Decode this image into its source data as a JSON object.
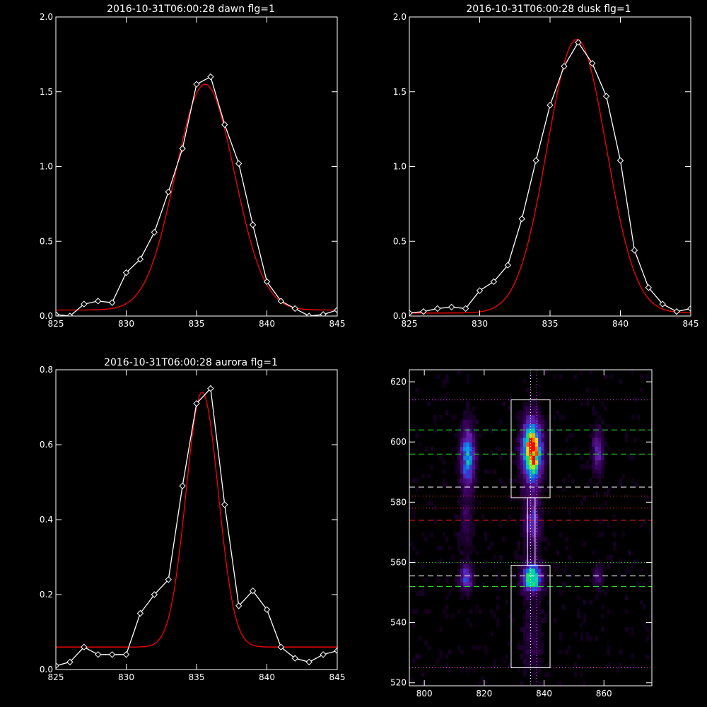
{
  "chart_data": [
    {
      "type": "line",
      "title": "2016-10-31T06:00:28 dawn flg=1",
      "xlim": [
        825,
        845
      ],
      "ylim": [
        0,
        2.0
      ],
      "xticks": [
        825,
        830,
        835,
        840,
        845
      ],
      "yticks": [
        0.0,
        0.5,
        1.0,
        1.5,
        2.0
      ],
      "ytick_labels": [
        "0.0",
        "0.5",
        "1.0",
        "1.5",
        "2.0"
      ],
      "series": [
        {
          "kind": "observed",
          "color": "#ffffff",
          "marker": "diamond",
          "x": [
            825,
            826,
            827,
            828,
            829,
            830,
            831,
            832,
            833,
            834,
            835,
            836,
            837,
            838,
            839,
            840,
            841,
            842,
            843,
            844,
            845
          ],
          "y": [
            0.01,
            0.0,
            0.08,
            0.1,
            0.09,
            0.29,
            0.38,
            0.56,
            0.83,
            1.12,
            1.55,
            1.6,
            1.28,
            1.02,
            0.61,
            0.23,
            0.1,
            0.05,
            0.0,
            0.01,
            0.04
          ]
        },
        {
          "kind": "fit",
          "color": "#ff0000",
          "gauss": {
            "amp": 1.51,
            "center": 835.6,
            "sigma": 2.1,
            "base": 0.04
          }
        }
      ]
    },
    {
      "type": "line",
      "title": "2016-10-31T06:00:28 dusk flg=1",
      "xlim": [
        825,
        845
      ],
      "ylim": [
        0,
        2.0
      ],
      "xticks": [
        825,
        830,
        835,
        840,
        845
      ],
      "yticks": [
        0.0,
        0.5,
        1.0,
        1.5,
        2.0
      ],
      "ytick_labels": [
        "0.0",
        "0.5",
        "1.0",
        "1.5",
        "2.0"
      ],
      "series": [
        {
          "kind": "observed",
          "color": "#ffffff",
          "marker": "diamond",
          "x": [
            825,
            826,
            827,
            828,
            829,
            830,
            831,
            832,
            833,
            834,
            835,
            836,
            837,
            838,
            839,
            840,
            841,
            842,
            843,
            844,
            845
          ],
          "y": [
            0.02,
            0.03,
            0.05,
            0.06,
            0.05,
            0.17,
            0.23,
            0.34,
            0.65,
            1.04,
            1.41,
            1.67,
            1.83,
            1.69,
            1.47,
            1.04,
            0.44,
            0.19,
            0.08,
            0.03,
            0.05
          ]
        },
        {
          "kind": "fit",
          "color": "#ff0000",
          "gauss": {
            "amp": 1.83,
            "center": 836.9,
            "sigma": 2.1,
            "base": 0.02
          }
        }
      ]
    },
    {
      "type": "line",
      "title": "2016-10-31T06:00:28 aurora flg=1",
      "xlim": [
        825,
        845
      ],
      "ylim": [
        0,
        0.8
      ],
      "xticks": [
        825,
        830,
        835,
        840,
        845
      ],
      "yticks": [
        0.0,
        0.2,
        0.4,
        0.6,
        0.8
      ],
      "ytick_labels": [
        "0.0",
        "0.2",
        "0.4",
        "0.6",
        "0.8"
      ],
      "series": [
        {
          "kind": "observed",
          "color": "#ffffff",
          "marker": "diamond",
          "x": [
            825,
            826,
            827,
            828,
            829,
            830,
            831,
            832,
            833,
            834,
            835,
            836,
            837,
            838,
            839,
            840,
            841,
            842,
            843,
            844,
            845
          ],
          "y": [
            0.01,
            0.02,
            0.06,
            0.04,
            0.04,
            0.04,
            0.15,
            0.2,
            0.24,
            0.49,
            0.71,
            0.75,
            0.44,
            0.17,
            0.21,
            0.16,
            0.06,
            0.03,
            0.02,
            0.04,
            0.05
          ]
        },
        {
          "kind": "fit",
          "color": "#ff0000",
          "gauss": {
            "amp": 0.68,
            "center": 835.4,
            "sigma": 1.15,
            "base": 0.06
          }
        }
      ]
    },
    {
      "type": "heatmap",
      "title": "",
      "xlim": [
        795,
        876
      ],
      "ylim": [
        519,
        624
      ],
      "xticks": [
        800,
        820,
        840,
        860
      ],
      "yticks": [
        520,
        540,
        560,
        580,
        600,
        620
      ],
      "ytick_labels": [
        "520",
        "540",
        "560",
        "580",
        "600",
        "620"
      ],
      "blobs": [
        {
          "x": 836,
          "y": 597,
          "sx": 2.2,
          "sy": 7,
          "amp": 1.0
        },
        {
          "x": 836,
          "y": 555,
          "sx": 2.2,
          "sy": 3.2,
          "amp": 0.75
        },
        {
          "x": 814.5,
          "y": 595,
          "sx": 1.6,
          "sy": 7,
          "amp": 0.55
        },
        {
          "x": 814,
          "y": 555,
          "sx": 1.5,
          "sy": 3,
          "amp": 0.4
        },
        {
          "x": 858,
          "y": 597,
          "sx": 1.3,
          "sy": 5,
          "amp": 0.32
        },
        {
          "x": 836,
          "y": 573,
          "sx": 1.8,
          "sy": 6,
          "amp": 0.35
        },
        {
          "x": 858,
          "y": 555,
          "sx": 1.2,
          "sy": 2.5,
          "amp": 0.2
        },
        {
          "x": 814,
          "y": 573,
          "sx": 1.5,
          "sy": 6,
          "amp": 0.15
        },
        {
          "x": 836,
          "y": 535,
          "sx": 2.2,
          "sy": 9,
          "amp": 0.12
        }
      ],
      "overlays": {
        "hlines": [
          {
            "y": 614,
            "color": "#ff44ff",
            "dash": "1,3"
          },
          {
            "y": 604,
            "color": "#22dd22",
            "dash": "8,5"
          },
          {
            "y": 596,
            "color": "#22dd22",
            "dash": "8,5"
          },
          {
            "y": 585,
            "color": "#ffffff",
            "dash": "8,5"
          },
          {
            "y": 582,
            "color": "#ff2222",
            "dash": "1,3"
          },
          {
            "y": 578,
            "color": "#ff2222",
            "dash": "1,3"
          },
          {
            "y": 574,
            "color": "#ff2222",
            "dash": "8,5"
          },
          {
            "y": 560,
            "color": "#22dd22",
            "dash": "1,3"
          },
          {
            "y": 555.5,
            "color": "#ffffff",
            "dash": "8,5"
          },
          {
            "y": 552,
            "color": "#22dd22",
            "dash": "8,5"
          },
          {
            "y": 525,
            "color": "#ff44ff",
            "dash": "1,3"
          }
        ],
        "vlines": [
          {
            "x": 835.5,
            "color": "#ffffff",
            "dash": "1,3"
          },
          {
            "x": 837.5,
            "color": "#ff44ff",
            "dash": "1,3"
          }
        ],
        "boxes": [
          {
            "x0": 829,
            "x1": 842,
            "y0": 581.5,
            "y1": 614,
            "color": "#ffffff"
          },
          {
            "x0": 829,
            "x1": 842,
            "y0": 525,
            "y1": 559,
            "color": "#ffffff"
          },
          {
            "x0": 834.5,
            "x1": 837,
            "y0": 559,
            "y1": 581.5,
            "color": "#ffffff"
          }
        ]
      }
    }
  ]
}
